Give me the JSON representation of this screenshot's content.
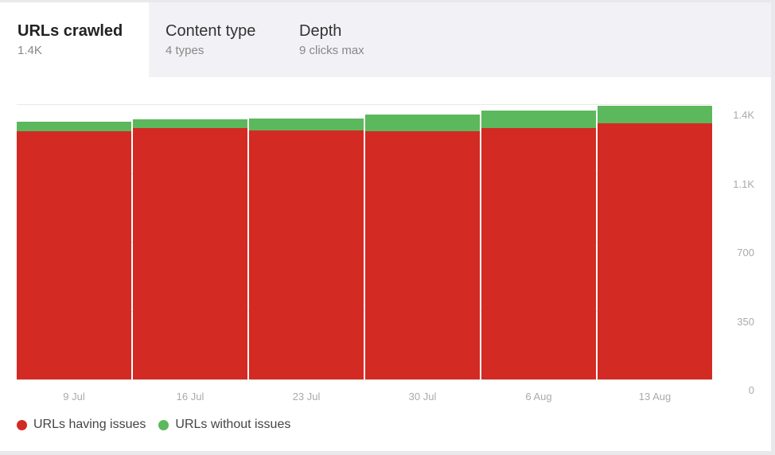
{
  "tabs": [
    {
      "title": "URLs crawled",
      "subtitle": "1.4K",
      "active": true
    },
    {
      "title": "Content type",
      "subtitle": "4 types",
      "active": false
    },
    {
      "title": "Depth",
      "subtitle": "9 clicks max",
      "active": false
    }
  ],
  "colors": {
    "issues": "#d32a24",
    "no_issues": "#5cb85c",
    "tab_inactive_bg": "#f2f2f6",
    "axis_text": "#aaaaaa"
  },
  "chart_data": {
    "type": "bar",
    "stacked": true,
    "title": "URLs crawled",
    "categories": [
      "9 Jul",
      "16 Jul",
      "23 Jul",
      "30 Jul",
      "6 Aug",
      "13 Aug"
    ],
    "series": [
      {
        "name": "URLs having issues",
        "color": "#d32a24",
        "values": [
          1262,
          1279,
          1268,
          1264,
          1279,
          1303
        ]
      },
      {
        "name": "URLs without issues",
        "color": "#5cb85c",
        "values": [
          48,
          43,
          60,
          85,
          89,
          90
        ]
      }
    ],
    "totals": [
      1310,
      1322,
      1328,
      1349,
      1368,
      1393
    ],
    "xlabel": "",
    "ylabel": "",
    "ylim": [
      0,
      1400
    ],
    "yticks": [
      {
        "value": 0,
        "label": "0"
      },
      {
        "value": 350,
        "label": "350"
      },
      {
        "value": 700,
        "label": "700"
      },
      {
        "value": 1050,
        "label": "1.1K"
      },
      {
        "value": 1400,
        "label": "1.4K"
      }
    ],
    "y_axis_position": "right",
    "grid": true,
    "legend_position": "bottom-left"
  },
  "legend": [
    {
      "label": "URLs having issues",
      "color": "#d32a24"
    },
    {
      "label": "URLs without issues",
      "color": "#5cb85c"
    }
  ]
}
